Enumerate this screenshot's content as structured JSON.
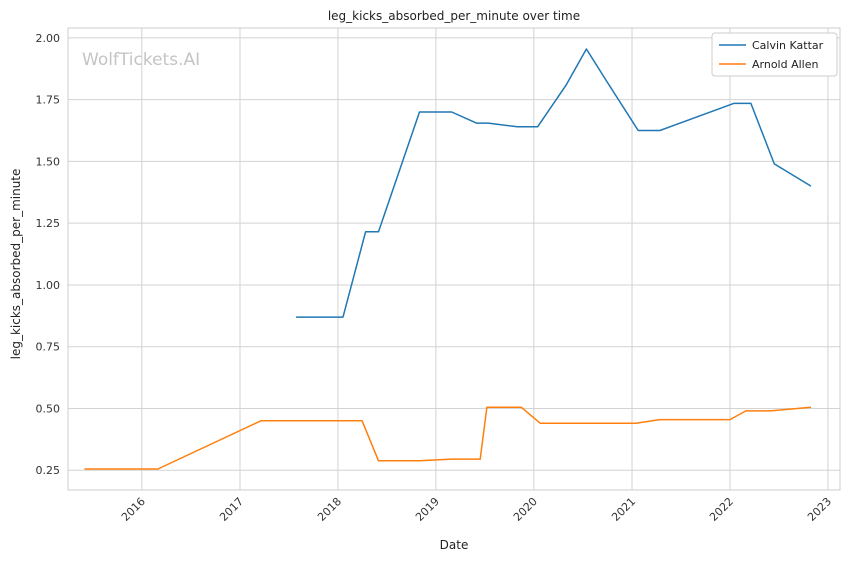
{
  "chart_data": {
    "type": "line",
    "title": "leg_kicks_absorbed_per_minute over time",
    "xlabel": "Date",
    "ylabel": "leg_kicks_absorbed_per_minute",
    "watermark": "WolfTickets.AI",
    "x_axis_type": "date",
    "xlim": [
      "2015-04-01",
      "2023-02-15"
    ],
    "ylim": [
      0.17,
      2.04
    ],
    "x_ticks": [
      "2016",
      "2017",
      "2018",
      "2019",
      "2020",
      "2021",
      "2022",
      "2023"
    ],
    "y_ticks": [
      "0.25",
      "0.50",
      "0.75",
      "1.00",
      "1.25",
      "1.50",
      "1.75",
      "2.00"
    ],
    "grid": true,
    "legend_position": "top-right",
    "series": [
      {
        "name": "Calvin Kattar",
        "color": "#1f77b4",
        "points": [
          [
            "2017-07-29",
            0.87
          ],
          [
            "2018-01-20",
            0.87
          ],
          [
            "2018-04-14",
            1.215
          ],
          [
            "2018-06-01",
            1.215
          ],
          [
            "2018-11-01",
            1.7
          ],
          [
            "2019-03-01",
            1.7
          ],
          [
            "2019-06-01",
            1.655
          ],
          [
            "2019-07-15",
            1.655
          ],
          [
            "2019-11-01",
            1.64
          ],
          [
            "2020-01-15",
            1.64
          ],
          [
            "2020-05-01",
            1.81
          ],
          [
            "2020-07-15",
            1.955
          ],
          [
            "2020-10-01",
            1.82
          ],
          [
            "2021-01-24",
            1.625
          ],
          [
            "2021-04-15",
            1.625
          ],
          [
            "2022-01-15",
            1.735
          ],
          [
            "2022-03-20",
            1.735
          ],
          [
            "2022-06-15",
            1.49
          ],
          [
            "2022-10-30",
            1.4
          ]
        ]
      },
      {
        "name": "Arnold Allen",
        "color": "#ff7f0e",
        "points": [
          [
            "2015-06-01",
            0.255
          ],
          [
            "2016-03-01",
            0.255
          ],
          [
            "2017-03-20",
            0.45
          ],
          [
            "2018-04-01",
            0.45
          ],
          [
            "2018-06-01",
            0.288
          ],
          [
            "2018-11-01",
            0.288
          ],
          [
            "2019-03-01",
            0.295
          ],
          [
            "2019-06-15",
            0.295
          ],
          [
            "2019-07-10",
            0.505
          ],
          [
            "2019-11-15",
            0.505
          ],
          [
            "2020-01-25",
            0.44
          ],
          [
            "2021-01-15",
            0.44
          ],
          [
            "2021-04-15",
            0.455
          ],
          [
            "2022-01-01",
            0.455
          ],
          [
            "2022-03-01",
            0.49
          ],
          [
            "2022-06-01",
            0.49
          ],
          [
            "2022-10-30",
            0.505
          ]
        ]
      }
    ]
  }
}
